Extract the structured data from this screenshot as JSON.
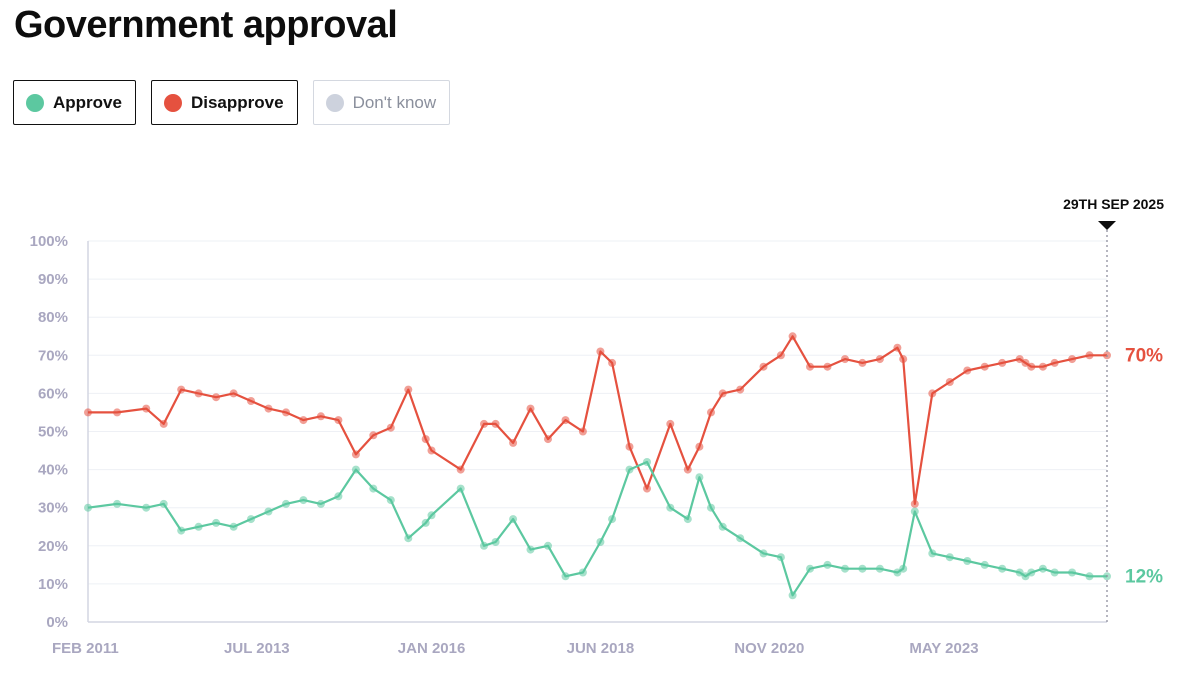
{
  "page": {
    "title": "Government approval"
  },
  "legend": [
    {
      "key": "approve",
      "label": "Approve",
      "color": "#5cc8a0",
      "active": true
    },
    {
      "key": "disapprove",
      "label": "Disapprove",
      "color": "#e5513f",
      "active": true
    },
    {
      "key": "dontknow",
      "label": "Don't know",
      "color": "#cdd2dd",
      "active": false
    }
  ],
  "chart_data": {
    "type": "line",
    "title": "Government approval",
    "xlabel": "",
    "ylabel": "",
    "ylim": [
      0,
      100
    ],
    "xlim": [
      "2011-02",
      "2025-09"
    ],
    "grid": true,
    "x_ticks": [
      {
        "date": "2011-02",
        "label": "FEB 2011"
      },
      {
        "date": "2013-07",
        "label": "JUL 2013"
      },
      {
        "date": "2016-01",
        "label": "JAN 2016"
      },
      {
        "date": "2018-06",
        "label": "JUN 2018"
      },
      {
        "date": "2020-11",
        "label": "NOV 2020"
      },
      {
        "date": "2023-05",
        "label": "MAY 2023"
      }
    ],
    "y_ticks": [
      "0%",
      "10%",
      "20%",
      "30%",
      "40%",
      "50%",
      "60%",
      "70%",
      "80%",
      "90%",
      "100%"
    ],
    "marker": {
      "date": "2025-09",
      "label": "29TH SEP 2025"
    },
    "series": [
      {
        "name": "Disapprove",
        "color": "#e5513f",
        "end_label": "70%",
        "x": [
          "2011-02",
          "2011-07",
          "2011-12",
          "2012-03",
          "2012-06",
          "2012-09",
          "2012-12",
          "2013-03",
          "2013-06",
          "2013-09",
          "2013-12",
          "2014-03",
          "2014-06",
          "2014-09",
          "2014-12",
          "2015-03",
          "2015-06",
          "2015-09",
          "2015-12",
          "2016-01",
          "2016-06",
          "2016-10",
          "2016-12",
          "2017-03",
          "2017-06",
          "2017-09",
          "2017-12",
          "2018-03",
          "2018-06",
          "2018-08",
          "2018-11",
          "2019-02",
          "2019-06",
          "2019-09",
          "2019-11",
          "2020-01",
          "2020-03",
          "2020-06",
          "2020-10",
          "2021-01",
          "2021-03",
          "2021-06",
          "2021-09",
          "2021-12",
          "2022-03",
          "2022-06",
          "2022-09",
          "2022-10",
          "2022-12",
          "2023-03",
          "2023-06",
          "2023-09",
          "2023-12",
          "2024-03",
          "2024-06",
          "2024-07",
          "2024-08",
          "2024-10",
          "2024-12",
          "2025-03",
          "2025-06",
          "2025-09"
        ],
        "values": [
          55,
          55,
          56,
          52,
          61,
          60,
          59,
          60,
          58,
          56,
          55,
          53,
          54,
          53,
          44,
          49,
          51,
          61,
          48,
          45,
          40,
          52,
          52,
          47,
          56,
          48,
          53,
          50,
          71,
          68,
          46,
          35,
          52,
          40,
          46,
          55,
          60,
          61,
          67,
          70,
          75,
          67,
          67,
          69,
          68,
          69,
          72,
          69,
          31,
          60,
          63,
          66,
          67,
          68,
          69,
          68,
          67,
          67,
          68,
          69,
          70,
          70
        ]
      },
      {
        "name": "Approve",
        "color": "#5cc8a0",
        "end_label": "12%",
        "x": [
          "2011-02",
          "2011-07",
          "2011-12",
          "2012-03",
          "2012-06",
          "2012-09",
          "2012-12",
          "2013-03",
          "2013-06",
          "2013-09",
          "2013-12",
          "2014-03",
          "2014-06",
          "2014-09",
          "2014-12",
          "2015-03",
          "2015-06",
          "2015-09",
          "2015-12",
          "2016-01",
          "2016-06",
          "2016-10",
          "2016-12",
          "2017-03",
          "2017-06",
          "2017-09",
          "2017-12",
          "2018-03",
          "2018-06",
          "2018-08",
          "2018-11",
          "2019-02",
          "2019-06",
          "2019-09",
          "2019-11",
          "2020-01",
          "2020-03",
          "2020-06",
          "2020-10",
          "2021-01",
          "2021-03",
          "2021-06",
          "2021-09",
          "2021-12",
          "2022-03",
          "2022-06",
          "2022-09",
          "2022-10",
          "2022-12",
          "2023-03",
          "2023-06",
          "2023-09",
          "2023-12",
          "2024-03",
          "2024-06",
          "2024-07",
          "2024-08",
          "2024-10",
          "2024-12",
          "2025-03",
          "2025-06",
          "2025-09"
        ],
        "values": [
          30,
          31,
          30,
          31,
          24,
          25,
          26,
          25,
          27,
          29,
          31,
          32,
          31,
          33,
          40,
          35,
          32,
          22,
          26,
          28,
          35,
          20,
          21,
          27,
          19,
          20,
          12,
          13,
          21,
          27,
          40,
          42,
          30,
          27,
          38,
          30,
          25,
          22,
          18,
          17,
          7,
          14,
          15,
          14,
          14,
          14,
          13,
          14,
          29,
          18,
          17,
          16,
          15,
          14,
          13,
          12,
          13,
          14,
          13,
          13,
          12,
          12
        ]
      }
    ]
  }
}
